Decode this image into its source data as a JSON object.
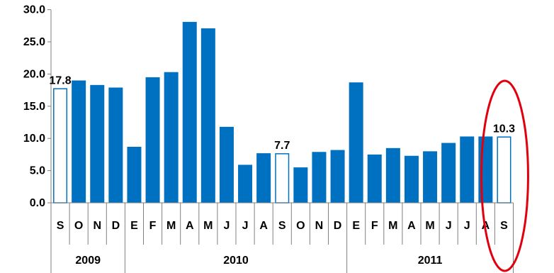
{
  "chart_data": {
    "type": "bar",
    "title": "",
    "xlabel": "",
    "ylabel": "",
    "ylim": [
      0,
      30
    ],
    "yticks": [
      "0.0",
      "5.0",
      "10.0",
      "15.0",
      "20.0",
      "25.0",
      "30.0"
    ],
    "grid": false,
    "legend": "none",
    "categories": [
      "S",
      "O",
      "N",
      "D",
      "E",
      "F",
      "M",
      "A",
      "M",
      "J",
      "J",
      "A",
      "S",
      "O",
      "N",
      "D",
      "E",
      "F",
      "M",
      "A",
      "M",
      "J",
      "J",
      "A",
      "S"
    ],
    "values": [
      17.8,
      19.0,
      18.3,
      17.9,
      8.7,
      19.5,
      20.3,
      28.1,
      27.1,
      11.8,
      5.9,
      7.7,
      7.7,
      5.5,
      7.9,
      8.2,
      18.7,
      7.5,
      8.5,
      7.3,
      8.0,
      9.3,
      10.3,
      10.3,
      10.3
    ],
    "hollow_bars": [
      0,
      12,
      24
    ],
    "data_labels": [
      {
        "index": 0,
        "text": "17.8"
      },
      {
        "index": 12,
        "text": "7.7"
      },
      {
        "index": 24,
        "text": "10.3"
      }
    ],
    "year_groups": [
      {
        "label": "2009",
        "start": 0,
        "end": 3
      },
      {
        "label": "2010",
        "start": 4,
        "end": 15
      },
      {
        "label": "2011",
        "start": 16,
        "end": 24
      }
    ],
    "highlight_index": 24,
    "colors": {
      "bar": "#0070c0",
      "hollow_border": "#0070c0",
      "highlight": "#e0000e",
      "axis": "#808080"
    }
  }
}
